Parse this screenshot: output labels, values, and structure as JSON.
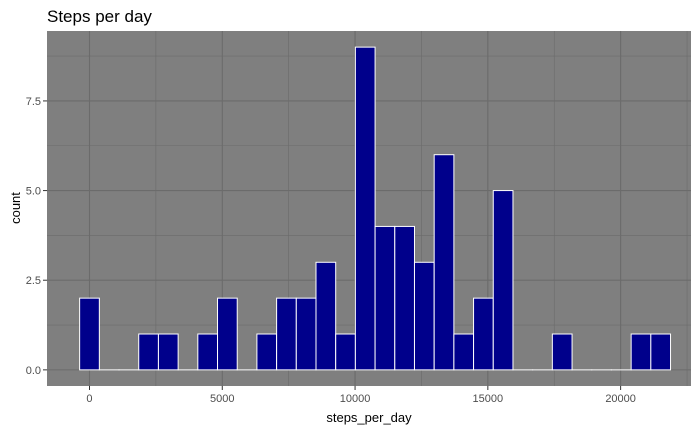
{
  "chart_data": {
    "type": "bar",
    "title": "Steps per day",
    "xlabel": "steps_per_day",
    "ylabel": "count",
    "bin_width": 741.7,
    "x_bin_centers": [
      0,
      742,
      1483,
      2225,
      2967,
      3708,
      4450,
      5192,
      5933,
      6675,
      7417,
      8158,
      8900,
      9642,
      10383,
      11125,
      11867,
      12608,
      13350,
      14092,
      14833,
      15575,
      16317,
      17058,
      17800,
      18542,
      19283,
      20025,
      20767,
      21508
    ],
    "values": [
      2,
      0,
      0,
      1,
      1,
      0,
      1,
      2,
      0,
      1,
      2,
      2,
      3,
      1,
      9,
      4,
      4,
      3,
      6,
      1,
      2,
      5,
      0,
      0,
      1,
      0,
      0,
      0,
      1,
      1
    ],
    "xlim": [
      -1600,
      22650
    ],
    "ylim": [
      -0.45,
      9.45
    ],
    "x_ticks": [
      0,
      5000,
      10000,
      15000,
      20000
    ],
    "x_tick_labels": [
      "0",
      "5000",
      "10000",
      "15000",
      "20000"
    ],
    "y_ticks": [
      0,
      2.5,
      5,
      7.5
    ],
    "y_tick_labels": [
      "0.0",
      "2.5",
      "5.0",
      "7.5"
    ],
    "bar_fill": "#00008b",
    "bar_outline": "#ffffff",
    "panel_background": "#7f7f7f",
    "grid_color": "#6b6b6b",
    "grid": true,
    "legend": "none"
  }
}
